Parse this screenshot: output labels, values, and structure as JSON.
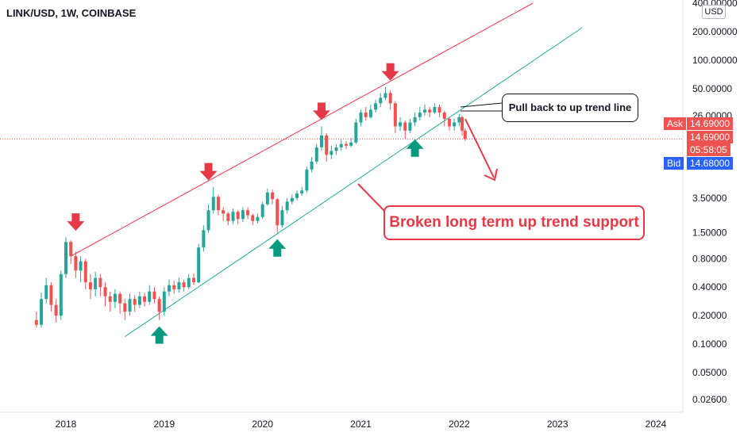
{
  "header": {
    "title": "LINK/USD, 1W, COINBASE",
    "currency": "USD"
  },
  "quotes": {
    "ask_label": "Ask",
    "ask_value": "14.69000",
    "last_value": "14.69000",
    "countdown": "05:58:05",
    "bid_label": "Bid",
    "bid_value": "14.68000"
  },
  "annotations": {
    "pullback": "Pull back to up trend line",
    "broken": "Broken long term up trend support"
  },
  "colors": {
    "up": "#26a69a",
    "down": "#ef5350",
    "resistance": "#f23645",
    "support": "#22ab94",
    "arrow_red": "#e53947",
    "arrow_green": "#089981",
    "ask": "#ef5350",
    "bid": "#2962ff"
  },
  "chart_data": {
    "type": "candlestick",
    "y_scale": "log",
    "y_ticks": [
      "400.00000",
      "200.00000",
      "100.00000",
      "50.00000",
      "26.00000",
      "3.50000",
      "1.50000",
      "0.80000",
      "0.40000",
      "0.20000",
      "0.10000",
      "0.05000",
      "0.02600"
    ],
    "x_ticks": [
      "2018",
      "2019",
      "2020",
      "2021",
      "2022",
      "2023",
      "2024"
    ],
    "candles": [
      [
        2017.7,
        0.18,
        0.16,
        0.22,
        0.15
      ],
      [
        2017.75,
        0.16,
        0.3,
        0.35,
        0.15
      ],
      [
        2017.8,
        0.3,
        0.42,
        0.5,
        0.27
      ],
      [
        2017.85,
        0.42,
        0.26,
        0.45,
        0.22
      ],
      [
        2017.9,
        0.26,
        0.2,
        0.3,
        0.17
      ],
      [
        2017.95,
        0.2,
        0.55,
        0.6,
        0.18
      ],
      [
        2018.0,
        0.55,
        1.2,
        1.35,
        0.5
      ],
      [
        2018.05,
        1.2,
        0.85,
        1.25,
        0.7
      ],
      [
        2018.1,
        0.85,
        0.6,
        0.95,
        0.5
      ],
      [
        2018.15,
        0.6,
        0.75,
        0.85,
        0.45
      ],
      [
        2018.2,
        0.75,
        0.45,
        0.8,
        0.38
      ],
      [
        2018.25,
        0.45,
        0.38,
        0.55,
        0.3
      ],
      [
        2018.3,
        0.38,
        0.5,
        0.58,
        0.32
      ],
      [
        2018.35,
        0.5,
        0.4,
        0.55,
        0.32
      ],
      [
        2018.4,
        0.4,
        0.32,
        0.45,
        0.25
      ],
      [
        2018.45,
        0.32,
        0.28,
        0.36,
        0.22
      ],
      [
        2018.5,
        0.28,
        0.34,
        0.38,
        0.24
      ],
      [
        2018.55,
        0.34,
        0.27,
        0.36,
        0.21
      ],
      [
        2018.6,
        0.27,
        0.22,
        0.3,
        0.18
      ],
      [
        2018.65,
        0.22,
        0.3,
        0.34,
        0.2
      ],
      [
        2018.7,
        0.3,
        0.26,
        0.33,
        0.22
      ],
      [
        2018.75,
        0.26,
        0.32,
        0.36,
        0.24
      ],
      [
        2018.8,
        0.32,
        0.28,
        0.35,
        0.25
      ],
      [
        2018.85,
        0.28,
        0.36,
        0.42,
        0.26
      ],
      [
        2018.9,
        0.36,
        0.3,
        0.4,
        0.27
      ],
      [
        2018.95,
        0.3,
        0.22,
        0.32,
        0.18
      ],
      [
        2019.0,
        0.22,
        0.36,
        0.4,
        0.2
      ],
      [
        2019.05,
        0.36,
        0.42,
        0.48,
        0.32
      ],
      [
        2019.1,
        0.42,
        0.38,
        0.47,
        0.34
      ],
      [
        2019.15,
        0.38,
        0.45,
        0.5,
        0.35
      ],
      [
        2019.2,
        0.45,
        0.4,
        0.48,
        0.36
      ],
      [
        2019.25,
        0.4,
        0.5,
        0.55,
        0.38
      ],
      [
        2019.3,
        0.5,
        0.45,
        0.56,
        0.42
      ],
      [
        2019.35,
        0.45,
        1.05,
        1.15,
        0.44
      ],
      [
        2019.4,
        1.05,
        1.6,
        1.8,
        0.95
      ],
      [
        2019.45,
        1.6,
        2.6,
        3.0,
        1.5
      ],
      [
        2019.5,
        2.6,
        3.6,
        4.6,
        2.4
      ],
      [
        2019.55,
        3.6,
        2.6,
        3.8,
        2.3
      ],
      [
        2019.6,
        2.6,
        2.4,
        2.8,
        2.0
      ],
      [
        2019.65,
        2.4,
        2.0,
        2.5,
        1.8
      ],
      [
        2019.7,
        2.0,
        2.5,
        2.7,
        1.85
      ],
      [
        2019.75,
        2.5,
        2.1,
        2.6,
        1.85
      ],
      [
        2019.8,
        2.1,
        2.6,
        2.8,
        1.95
      ],
      [
        2019.85,
        2.6,
        2.3,
        2.8,
        2.1
      ],
      [
        2019.9,
        2.3,
        2.0,
        2.4,
        1.8
      ],
      [
        2019.95,
        2.0,
        2.2,
        2.4,
        1.9
      ],
      [
        2020.0,
        2.2,
        3.0,
        3.2,
        2.1
      ],
      [
        2020.05,
        3.0,
        4.0,
        4.4,
        2.9
      ],
      [
        2020.1,
        4.0,
        3.4,
        4.3,
        3.0
      ],
      [
        2020.15,
        3.4,
        1.8,
        3.5,
        1.5
      ],
      [
        2020.2,
        1.8,
        2.6,
        2.9,
        1.7
      ],
      [
        2020.25,
        2.6,
        3.2,
        3.5,
        2.4
      ],
      [
        2020.3,
        3.2,
        3.5,
        3.8,
        3.0
      ],
      [
        2020.35,
        3.5,
        3.9,
        4.2,
        3.3
      ],
      [
        2020.4,
        3.9,
        4.2,
        4.6,
        3.7
      ],
      [
        2020.45,
        4.2,
        7.0,
        7.5,
        4.0
      ],
      [
        2020.5,
        7.0,
        8.5,
        9.5,
        6.5
      ],
      [
        2020.55,
        8.5,
        12.0,
        13.0,
        8.0
      ],
      [
        2020.6,
        12.0,
        16.0,
        20.0,
        11.0
      ],
      [
        2020.65,
        16.0,
        10.0,
        17.0,
        8.5
      ],
      [
        2020.7,
        10.0,
        11.0,
        12.5,
        9.0
      ],
      [
        2020.75,
        11.0,
        12.0,
        13.0,
        10.0
      ],
      [
        2020.8,
        12.0,
        13.0,
        14.5,
        11.0
      ],
      [
        2020.85,
        13.0,
        12.5,
        14.0,
        11.5
      ],
      [
        2020.9,
        12.5,
        13.5,
        15.0,
        12.0
      ],
      [
        2020.95,
        13.5,
        22.0,
        24.0,
        13.0
      ],
      [
        2021.0,
        22.0,
        28.0,
        30.0,
        20.0
      ],
      [
        2021.05,
        28.0,
        25.0,
        32.0,
        23.0
      ],
      [
        2021.1,
        25.0,
        30.0,
        34.0,
        24.0
      ],
      [
        2021.15,
        30.0,
        35.0,
        38.0,
        28.0
      ],
      [
        2021.2,
        35.0,
        40.0,
        45.0,
        32.0
      ],
      [
        2021.25,
        40.0,
        45.0,
        52.0,
        38.0
      ],
      [
        2021.3,
        45.0,
        35.0,
        48.0,
        30.0
      ],
      [
        2021.35,
        35.0,
        20.0,
        37.0,
        17.0
      ],
      [
        2021.4,
        20.0,
        22.0,
        25.0,
        18.0
      ],
      [
        2021.45,
        22.0,
        18.0,
        23.0,
        15.0
      ],
      [
        2021.5,
        18.0,
        22.0,
        24.0,
        17.0
      ],
      [
        2021.55,
        22.0,
        25.0,
        28.0,
        20.0
      ],
      [
        2021.6,
        25.0,
        28.0,
        32.0,
        23.0
      ],
      [
        2021.65,
        28.0,
        30.0,
        34.0,
        26.0
      ],
      [
        2021.7,
        30.0,
        28.0,
        32.0,
        25.0
      ],
      [
        2021.75,
        28.0,
        32.0,
        35.0,
        27.0
      ],
      [
        2021.8,
        32.0,
        28.0,
        34.0,
        25.0
      ],
      [
        2021.85,
        28.0,
        24.0,
        29.0,
        20.0
      ],
      [
        2021.9,
        24.0,
        20.0,
        25.0,
        18.0
      ],
      [
        2021.95,
        20.0,
        22.0,
        24.0,
        18.0
      ],
      [
        2022.0,
        22.0,
        25.0,
        27.0,
        20.0
      ],
      [
        2022.03,
        25.0,
        18.0,
        26.0,
        16.0
      ],
      [
        2022.06,
        18.0,
        14.69,
        19.0,
        14.0
      ]
    ],
    "resistance_line": {
      "x": [
        2018.05,
        2022.75
      ],
      "y": [
        0.85,
        400.0
      ]
    },
    "support_line": {
      "x": [
        2018.6,
        2023.25
      ],
      "y": [
        0.12,
        220.0
      ]
    }
  }
}
